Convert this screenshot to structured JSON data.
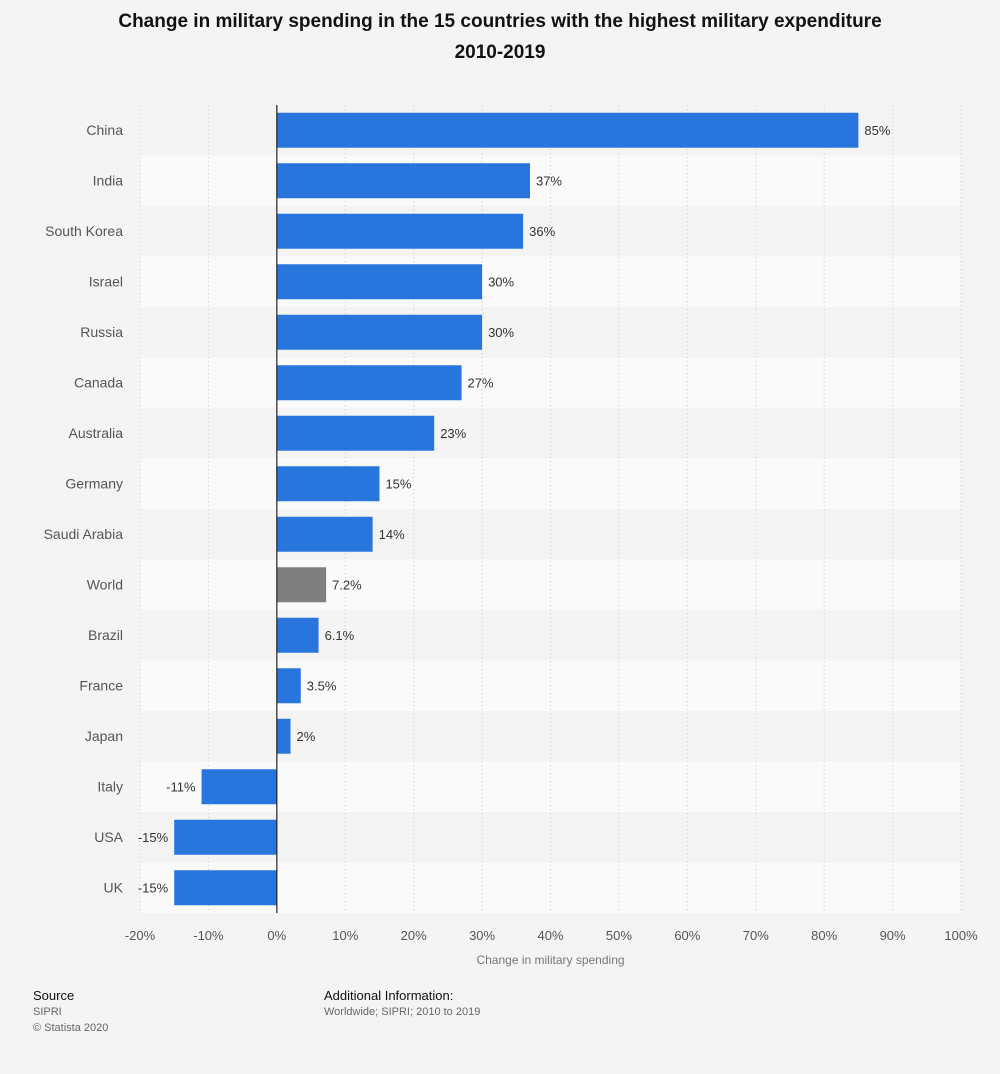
{
  "chart_data": {
    "type": "bar",
    "orientation": "horizontal",
    "title_line1": "Change in military spending in the 15 countries with the highest military expenditure",
    "title_line2": "2010-2019",
    "xlabel": "Change in military spending",
    "xlim": [
      -20,
      100
    ],
    "xticks": [
      "-20%",
      "-10%",
      "0%",
      "10%",
      "20%",
      "30%",
      "40%",
      "50%",
      "60%",
      "70%",
      "80%",
      "90%",
      "100%"
    ],
    "xtick_values": [
      -20,
      -10,
      0,
      10,
      20,
      30,
      40,
      50,
      60,
      70,
      80,
      90,
      100
    ],
    "grid": "vertical dotted",
    "categories": [
      "China",
      "India",
      "South Korea",
      "Israel",
      "Russia",
      "Canada",
      "Australia",
      "Germany",
      "Saudi Arabia",
      "World",
      "Brazil",
      "France",
      "Japan",
      "Italy",
      "USA",
      "UK"
    ],
    "values": [
      85,
      37,
      36,
      30,
      30,
      27,
      23,
      15,
      14,
      7.2,
      6.1,
      3.5,
      2,
      -11,
      -15,
      -15
    ],
    "labels": [
      "85%",
      "37%",
      "36%",
      "30%",
      "30%",
      "27%",
      "23%",
      "15%",
      "14%",
      "7.2%",
      "6.1%",
      "3.5%",
      "2%",
      "-11%",
      "-15%",
      "-15%"
    ],
    "colors": [
      "#2876dd",
      "#2876dd",
      "#2876dd",
      "#2876dd",
      "#2876dd",
      "#2876dd",
      "#2876dd",
      "#2876dd",
      "#2876dd",
      "#7f7f7f",
      "#2876dd",
      "#2876dd",
      "#2876dd",
      "#2876dd",
      "#2876dd",
      "#2876dd"
    ]
  },
  "footer": {
    "source_heading": "Source",
    "source_text": "SIPRI",
    "copyright": "© Statista 2020",
    "info_heading": "Additional Information:",
    "info_text": "Worldwide; SIPRI; 2010 to 2019"
  }
}
